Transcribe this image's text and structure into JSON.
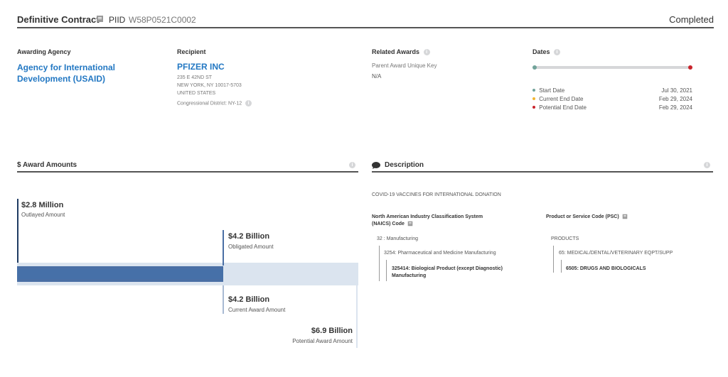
{
  "header": {
    "title": "Definitive Contract",
    "piid_label": "PIID",
    "piid_value": "W58P0521C0002",
    "status": "Completed"
  },
  "agency": {
    "label": "Awarding Agency",
    "name": "Agency for International Development (USAID)"
  },
  "recipient": {
    "label": "Recipient",
    "name": "PFIZER INC",
    "address_line1": "235 E 42ND ST",
    "address_line2": "NEW YORK, NY 10017-5703",
    "address_line3": "UNITED STATES",
    "district": "Congressional District: NY-12"
  },
  "related": {
    "label": "Related Awards",
    "parent_label": "Parent Award Unique Key",
    "parent_value": "N/A"
  },
  "dates": {
    "label": "Dates",
    "start_label": "Start Date",
    "start_value": "Jul 30, 2021",
    "current_label": "Current End Date",
    "current_value": "Feb 29, 2024",
    "potential_label": "Potential End Date",
    "potential_value": "Feb 29, 2024",
    "colors": {
      "start": "#71a39a",
      "current": "#f2b632",
      "potential": "#c9242c"
    }
  },
  "amounts": {
    "title": "$ Award Amounts",
    "outlayed_value": "$2.8 Million",
    "outlayed_label": "Outlayed Amount",
    "obligated_value": "$4.2 Billion",
    "obligated_label": "Obligated Amount",
    "current_value": "$4.2 Billion",
    "current_label": "Current Award Amount",
    "potential_value": "$6.9 Billion",
    "potential_label": "Potential Award Amount",
    "colors": {
      "obligated": "#4a6fa5",
      "current": "#dbe4ef",
      "outlayed": "#1f3b63"
    }
  },
  "description": {
    "title": "Description",
    "text": "COVID-19 VACCINES FOR INTERNATIONAL DONATION",
    "naics_label_line1": "North American Industry Classification System",
    "naics_label_line2": "(NAICS) Code",
    "naics_level1": "32 : Manufacturing",
    "naics_level2": "3254: Pharmaceutical and Medicine Manufacturing",
    "naics_level3_line1": "325414: Biological Product (except Diagnostic)",
    "naics_level3_line2": "Manufacturing",
    "psc_label": "Product or Service Code (PSC)",
    "psc_level1": "PRODUCTS",
    "psc_level2": "65: MEDICAL/DENTAL/VETERINARY EQPT/SUPP",
    "psc_level3": "6505: DRUGS AND BIOLOGICALS"
  }
}
